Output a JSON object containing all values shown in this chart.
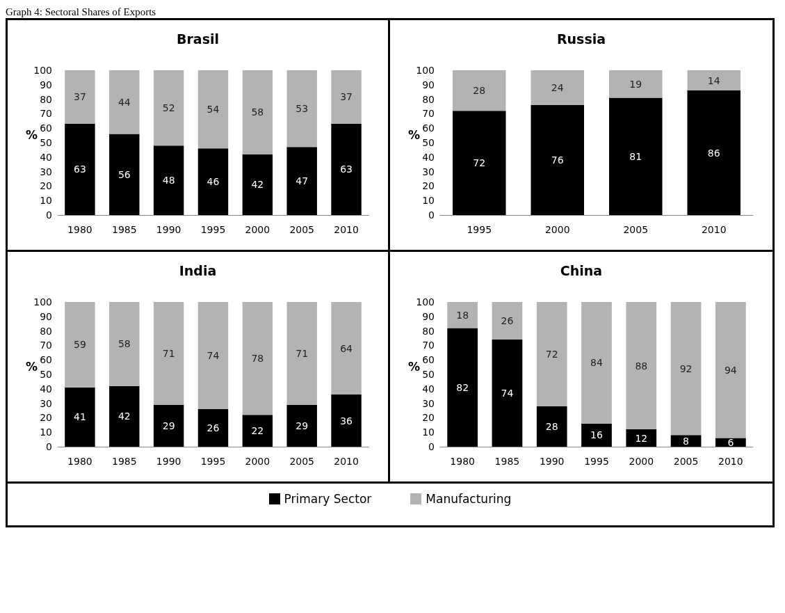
{
  "chart_data": [
    {
      "type": "bar",
      "title": "Brasil",
      "ylabel": "%",
      "categories": [
        "1980",
        "1985",
        "1990",
        "1995",
        "2000",
        "2005",
        "2010"
      ],
      "stacked": true,
      "data_labels": true,
      "ylim": [
        0,
        100
      ],
      "yticks": [
        0,
        10,
        20,
        30,
        40,
        50,
        60,
        70,
        80,
        90,
        100
      ],
      "grid": false,
      "legend": "bottom",
      "annotations": [
        "Graph 4: Sectoral Shares of Exports"
      ],
      "series": [
        {
          "name": "Primary Sector",
          "color": "#000000",
          "values": [
            63,
            56,
            48,
            46,
            42,
            47,
            63
          ]
        },
        {
          "name": "Manufacturing",
          "color": "#b3b3b3",
          "values": [
            37,
            44,
            52,
            54,
            58,
            53,
            37
          ]
        }
      ]
    },
    {
      "type": "bar",
      "title": "Russia",
      "ylabel": "%",
      "categories": [
        "1995",
        "2000",
        "2005",
        "2010"
      ],
      "stacked": true,
      "data_labels": true,
      "ylim": [
        0,
        100
      ],
      "yticks": [
        0,
        10,
        20,
        30,
        40,
        50,
        60,
        70,
        80,
        90,
        100
      ],
      "grid": false,
      "series": [
        {
          "color": "#000000",
          "values": [
            72,
            76,
            81,
            86
          ]
        },
        {
          "color": "#b3b3b3",
          "values": [
            28,
            24,
            19,
            14
          ]
        }
      ]
    },
    {
      "type": "bar",
      "title": "India",
      "ylabel": "%",
      "categories": [
        "1980",
        "1985",
        "1990",
        "1995",
        "2000",
        "2005",
        "2010"
      ],
      "stacked": true,
      "data_labels": true,
      "ylim": [
        0,
        100
      ],
      "yticks": [
        0,
        10,
        20,
        30,
        40,
        50,
        60,
        70,
        80,
        90,
        100
      ],
      "grid": false,
      "series": [
        {
          "color": "#000000",
          "values": [
            41,
            42,
            29,
            26,
            22,
            29,
            36
          ]
        },
        {
          "color": "#b3b3b3",
          "values": [
            59,
            58,
            71,
            74,
            78,
            71,
            64
          ]
        }
      ]
    },
    {
      "type": "bar",
      "title": "China",
      "ylabel": "%",
      "categories": [
        "1980",
        "1985",
        "1990",
        "1995",
        "2000",
        "2005",
        "2010"
      ],
      "stacked": true,
      "data_labels": true,
      "ylim": [
        0,
        100
      ],
      "yticks": [
        0,
        10,
        20,
        30,
        40,
        50,
        60,
        70,
        80,
        90,
        100
      ],
      "grid": false,
      "series": [
        {
          "color": "#000000",
          "values": [
            82,
            74,
            28,
            16,
            12,
            8,
            6
          ]
        },
        {
          "color": "#b3b3b3",
          "values": [
            18,
            26,
            72,
            84,
            88,
            92,
            94
          ]
        }
      ]
    }
  ]
}
